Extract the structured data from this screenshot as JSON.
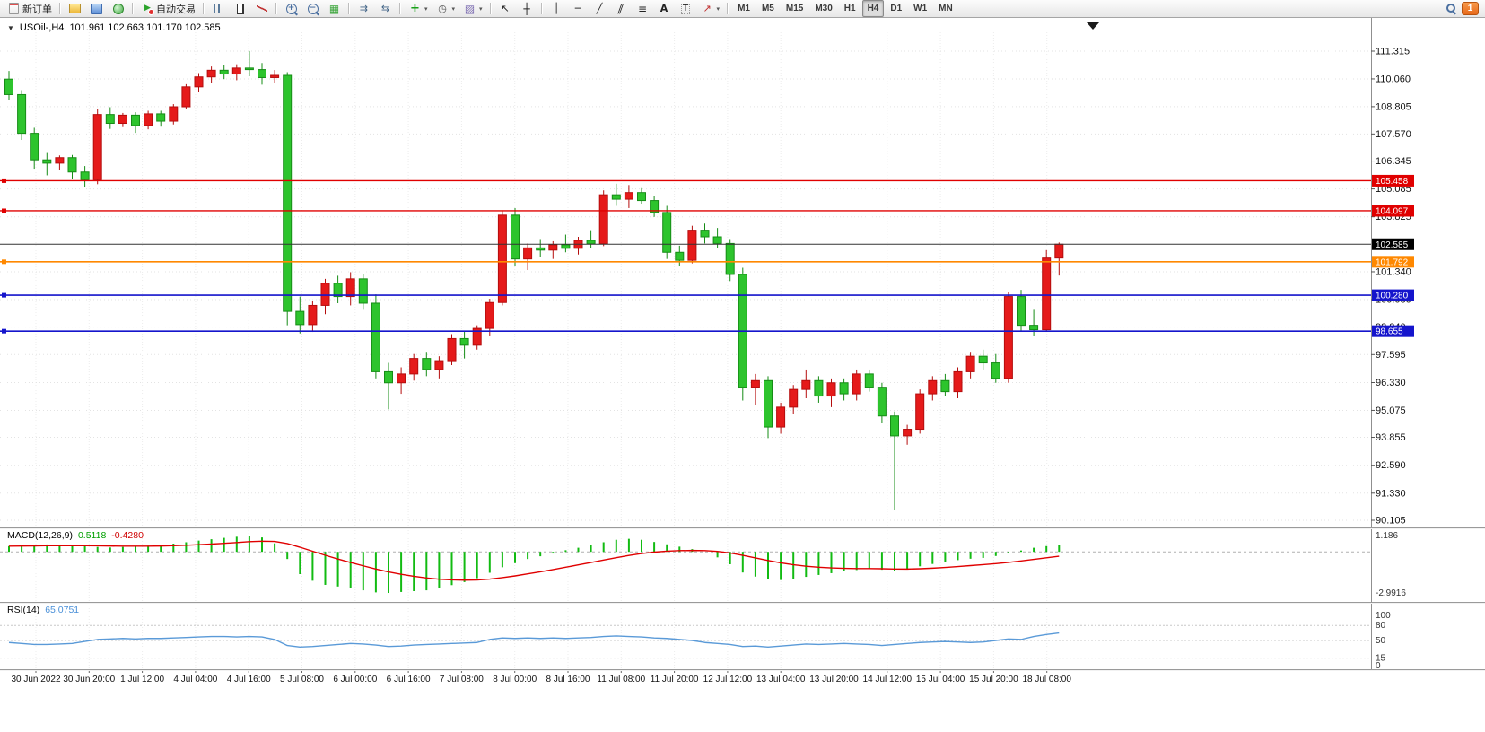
{
  "toolbar": {
    "items": [
      {
        "name": "new-order-button",
        "icon": "new-order-icon",
        "label": "新订单"
      },
      {
        "name": "sep"
      },
      {
        "name": "indicators-window-button",
        "icon": "yellow-chart-icon"
      },
      {
        "name": "profiles-button",
        "icon": "blue-profiles-icon"
      },
      {
        "name": "market-watch-button",
        "icon": "green-market-icon"
      },
      {
        "name": "sep"
      },
      {
        "name": "autotrading-button",
        "icon": "autotrading-icon",
        "label": "自动交易"
      },
      {
        "name": "sep"
      },
      {
        "name": "bar-chart-button",
        "icon": "bar-chart-icon"
      },
      {
        "name": "candlestick-button",
        "icon": "candlestick-icon"
      },
      {
        "name": "line-chart-button",
        "icon": "line-chart-icon"
      },
      {
        "name": "sep"
      },
      {
        "name": "zoom-in-button",
        "icon": "zoom-in-icon"
      },
      {
        "name": "zoom-out-button",
        "icon": "zoom-out-icon"
      },
      {
        "name": "tile-windows-button",
        "icon": "tile-windows-icon"
      },
      {
        "name": "sep"
      },
      {
        "name": "auto-scroll-button",
        "icon": "auto-scroll-icon"
      },
      {
        "name": "chart-shift-button",
        "icon": "chart-shift-icon"
      },
      {
        "name": "sep"
      },
      {
        "name": "add-indicator-button",
        "icon": "plus-icon",
        "dropdown": true
      },
      {
        "name": "periods-button",
        "icon": "clock-icon",
        "dropdown": true
      },
      {
        "name": "templates-button",
        "icon": "template-icon",
        "dropdown": true
      },
      {
        "name": "sep"
      },
      {
        "name": "cursor-button",
        "icon": "cursor-icon"
      },
      {
        "name": "crosshair-button",
        "icon": "crosshair-icon"
      },
      {
        "name": "sep"
      },
      {
        "name": "vertical-line-button",
        "icon": "vline-icon"
      },
      {
        "name": "horizontal-line-button",
        "icon": "hline-icon"
      },
      {
        "name": "trendline-button",
        "icon": "trendline-icon"
      },
      {
        "name": "channel-button",
        "icon": "channel-icon"
      },
      {
        "name": "fibonacci-button",
        "icon": "fibonacci-icon"
      },
      {
        "name": "text-button",
        "icon": "text-icon"
      },
      {
        "name": "label-button",
        "icon": "label-icon"
      },
      {
        "name": "arrows-button",
        "icon": "arrows-icon",
        "dropdown": true
      },
      {
        "name": "sep"
      }
    ],
    "timeframes": [
      "M1",
      "M5",
      "M15",
      "M30",
      "H1",
      "H4",
      "D1",
      "W1",
      "MN"
    ],
    "active_timeframe": "H4",
    "badge_count": "1"
  },
  "chart_data": {
    "type": "candlestick",
    "symbol": "USOil-",
    "timeframe": "H4",
    "title": "USOil-,H4",
    "ohlc_label": "101.961 102.663 101.170 102.585",
    "current_ohlc": {
      "open": 101.961,
      "high": 102.663,
      "low": 101.17,
      "close": 102.585
    },
    "price_ticks": [
      "111.315",
      "110.060",
      "108.805",
      "107.570",
      "106.345",
      "105.085",
      "103.825",
      "101.340",
      "100.080",
      "98.840",
      "97.595",
      "96.330",
      "95.075",
      "93.855",
      "92.590",
      "91.330",
      "90.105"
    ],
    "time_labels": [
      "30 Jun 2022",
      "30 Jun 20:00",
      "1 Jul 12:00",
      "4 Jul 04:00",
      "4 Jul 16:00",
      "5 Jul 08:00",
      "6 Jul 00:00",
      "6 Jul 16:00",
      "7 Jul 08:00",
      "8 Jul 00:00",
      "8 Jul 16:00",
      "11 Jul 08:00",
      "11 Jul 20:00",
      "12 Jul 12:00",
      "13 Jul 04:00",
      "13 Jul 20:00",
      "14 Jul 12:00",
      "15 Jul 04:00",
      "15 Jul 20:00",
      "18 Jul 08:00"
    ],
    "horizontal_lines": [
      {
        "price": 105.458,
        "label": "105.458",
        "color": "#e00000",
        "width": 1.4
      },
      {
        "price": 104.097,
        "label": "104.097",
        "color": "#e00000",
        "width": 1.4
      },
      {
        "price": 101.792,
        "label": "101.792",
        "color": "#ff8800",
        "width": 1.6
      },
      {
        "price": 100.28,
        "label": "100.280",
        "color": "#1515cc",
        "width": 1.6
      },
      {
        "price": 98.655,
        "label": "98.655",
        "color": "#1515cc",
        "width": 1.6
      }
    ],
    "current_price": {
      "value": 102.585,
      "label": "102.585"
    },
    "candles": [
      [
        110.05,
        110.42,
        109.1,
        109.35
      ],
      [
        109.35,
        109.55,
        107.3,
        107.6
      ],
      [
        107.6,
        107.85,
        106.0,
        106.4
      ],
      [
        106.4,
        106.75,
        105.7,
        106.25
      ],
      [
        106.25,
        106.6,
        105.95,
        106.5
      ],
      [
        106.5,
        106.62,
        105.55,
        105.85
      ],
      [
        105.85,
        106.12,
        105.15,
        105.5
      ],
      [
        105.5,
        108.72,
        105.3,
        108.45
      ],
      [
        108.45,
        108.78,
        107.8,
        108.05
      ],
      [
        108.05,
        108.52,
        107.88,
        108.42
      ],
      [
        108.42,
        108.55,
        107.62,
        107.95
      ],
      [
        107.95,
        108.62,
        107.78,
        108.48
      ],
      [
        108.48,
        108.62,
        107.9,
        108.15
      ],
      [
        108.15,
        108.92,
        108.0,
        108.8
      ],
      [
        108.8,
        109.82,
        108.68,
        109.7
      ],
      [
        109.7,
        110.32,
        109.48,
        110.15
      ],
      [
        110.15,
        110.62,
        109.88,
        110.45
      ],
      [
        110.45,
        110.68,
        110.05,
        110.28
      ],
      [
        110.28,
        110.72,
        110.0,
        110.55
      ],
      [
        110.55,
        111.32,
        110.18,
        110.48
      ],
      [
        110.48,
        110.78,
        109.8,
        110.12
      ],
      [
        110.12,
        110.46,
        109.88,
        110.22
      ],
      [
        110.22,
        110.36,
        98.92,
        99.55
      ],
      [
        99.55,
        100.22,
        98.55,
        98.95
      ],
      [
        98.95,
        100.02,
        98.62,
        99.82
      ],
      [
        99.82,
        101.02,
        99.42,
        100.82
      ],
      [
        100.82,
        101.16,
        99.92,
        100.22
      ],
      [
        100.22,
        101.32,
        99.82,
        101.02
      ],
      [
        101.02,
        101.22,
        99.62,
        99.92
      ],
      [
        99.92,
        100.32,
        96.52,
        96.82
      ],
      [
        96.82,
        97.22,
        95.12,
        96.32
      ],
      [
        96.32,
        97.02,
        95.82,
        96.72
      ],
      [
        96.72,
        97.62,
        96.42,
        97.42
      ],
      [
        97.42,
        97.72,
        96.62,
        96.92
      ],
      [
        96.92,
        97.52,
        96.52,
        97.32
      ],
      [
        97.32,
        98.52,
        97.12,
        98.32
      ],
      [
        98.32,
        98.62,
        97.42,
        98.02
      ],
      [
        98.02,
        98.92,
        97.82,
        98.78
      ],
      [
        98.78,
        100.12,
        98.42,
        99.95
      ],
      [
        99.95,
        104.12,
        99.82,
        103.9
      ],
      [
        103.9,
        104.22,
        101.62,
        101.92
      ],
      [
        101.92,
        102.62,
        101.42,
        102.42
      ],
      [
        102.42,
        102.82,
        102.02,
        102.32
      ],
      [
        102.32,
        102.72,
        101.92,
        102.56
      ],
      [
        102.56,
        103.02,
        102.22,
        102.4
      ],
      [
        102.4,
        102.92,
        102.12,
        102.76
      ],
      [
        102.76,
        103.22,
        102.42,
        102.6
      ],
      [
        102.6,
        105.02,
        102.5,
        104.82
      ],
      [
        104.82,
        105.32,
        104.32,
        104.62
      ],
      [
        104.62,
        105.26,
        104.22,
        104.92
      ],
      [
        104.92,
        105.12,
        104.42,
        104.56
      ],
      [
        104.56,
        104.78,
        103.82,
        104.02
      ],
      [
        104.02,
        104.32,
        101.92,
        102.22
      ],
      [
        102.22,
        102.52,
        101.62,
        101.86
      ],
      [
        101.86,
        103.42,
        101.72,
        103.22
      ],
      [
        103.22,
        103.52,
        102.62,
        102.92
      ],
      [
        102.92,
        103.32,
        102.42,
        102.62
      ],
      [
        102.62,
        102.82,
        100.92,
        101.22
      ],
      [
        101.22,
        101.52,
        95.52,
        96.12
      ],
      [
        96.12,
        96.72,
        95.32,
        96.42
      ],
      [
        96.42,
        96.62,
        93.82,
        94.32
      ],
      [
        94.32,
        95.42,
        94.02,
        95.22
      ],
      [
        95.22,
        96.22,
        94.92,
        96.02
      ],
      [
        96.02,
        96.92,
        95.62,
        96.42
      ],
      [
        96.42,
        96.62,
        95.42,
        95.72
      ],
      [
        95.72,
        96.52,
        95.22,
        96.32
      ],
      [
        96.32,
        96.52,
        95.52,
        95.82
      ],
      [
        95.82,
        96.92,
        95.52,
        96.72
      ],
      [
        96.72,
        96.92,
        95.92,
        96.12
      ],
      [
        96.12,
        96.32,
        94.52,
        94.82
      ],
      [
        94.82,
        95.02,
        90.56,
        93.92
      ],
      [
        93.92,
        94.42,
        93.52,
        94.22
      ],
      [
        94.22,
        96.02,
        94.02,
        95.82
      ],
      [
        95.82,
        96.62,
        95.52,
        96.42
      ],
      [
        96.42,
        96.72,
        95.72,
        95.92
      ],
      [
        95.92,
        97.02,
        95.62,
        96.82
      ],
      [
        96.82,
        97.72,
        96.52,
        97.52
      ],
      [
        97.52,
        97.82,
        96.92,
        97.22
      ],
      [
        97.22,
        97.62,
        96.32,
        96.52
      ],
      [
        96.52,
        100.42,
        96.32,
        100.22
      ],
      [
        100.22,
        100.52,
        98.62,
        98.92
      ],
      [
        98.92,
        99.62,
        98.42,
        98.72
      ],
      [
        98.72,
        102.32,
        98.62,
        101.96
      ],
      [
        101.961,
        102.663,
        101.17,
        102.585
      ]
    ],
    "macd": {
      "label": "MACD(12,26,9)",
      "value_label": "0.5118",
      "signal_label": "-0.4280",
      "axis_max_label": "1.186",
      "axis_min_label": "-2.9916",
      "histogram": [
        0.42,
        0.46,
        0.5,
        0.54,
        0.5,
        0.46,
        0.42,
        0.36,
        0.32,
        0.36,
        0.4,
        0.45,
        0.5,
        0.6,
        0.7,
        0.82,
        0.92,
        1.02,
        1.1,
        1.186,
        1.05,
        0.62,
        -0.52,
        -1.62,
        -2.1,
        -2.4,
        -2.52,
        -2.62,
        -2.8,
        -2.95,
        -2.9916,
        -2.92,
        -2.86,
        -2.8,
        -2.62,
        -2.42,
        -2.2,
        -1.92,
        -1.52,
        -1.12,
        -0.82,
        -0.52,
        -0.32,
        -0.12,
        0.12,
        0.3,
        0.5,
        0.7,
        0.88,
        0.95,
        0.88,
        0.72,
        0.55,
        0.38,
        0.2,
        0.0,
        -0.4,
        -0.9,
        -1.5,
        -1.8,
        -2.0,
        -2.05,
        -1.95,
        -1.82,
        -1.68,
        -1.55,
        -1.42,
        -1.32,
        -1.25,
        -1.3,
        -1.4,
        -1.28,
        -1.05,
        -0.88,
        -0.72,
        -0.6,
        -0.5,
        -0.44,
        -0.3,
        -0.1,
        0.1,
        0.3,
        0.42,
        0.5118
      ]
    },
    "rsi": {
      "label": "RSI(14)",
      "value_label": "65.0751",
      "axis_labels": [
        "100",
        "80",
        "50",
        "15",
        "0"
      ],
      "levels": [
        80,
        50,
        15
      ],
      "values": [
        46,
        44,
        42,
        42,
        43,
        44,
        48,
        52,
        53,
        54,
        53,
        54,
        54,
        55,
        56,
        57,
        58,
        58,
        57,
        58,
        57,
        52,
        40,
        37,
        38,
        40,
        42,
        44,
        43,
        41,
        38,
        39,
        41,
        42,
        43,
        44,
        45,
        46,
        52,
        55,
        54,
        55,
        54,
        55,
        54,
        55,
        56,
        58,
        59,
        58,
        57,
        55,
        54,
        52,
        50,
        46,
        44,
        42,
        38,
        39,
        37,
        39,
        41,
        43,
        42,
        43,
        44,
        43,
        42,
        40,
        42,
        44,
        46,
        47,
        48,
        47,
        46,
        47,
        50,
        53,
        52,
        58,
        62,
        65.0751
      ]
    },
    "colors": {
      "up": "#b50d0d",
      "up_fill": "#e51a1a",
      "down": "#168c16",
      "down_fill": "#2dc42d",
      "macd_histogram": "#12bb12",
      "macd_signal": "#e00000",
      "rsi_line": "#5a9ad8",
      "current_price_line": "#333333",
      "current_price_box": "#000000"
    }
  }
}
